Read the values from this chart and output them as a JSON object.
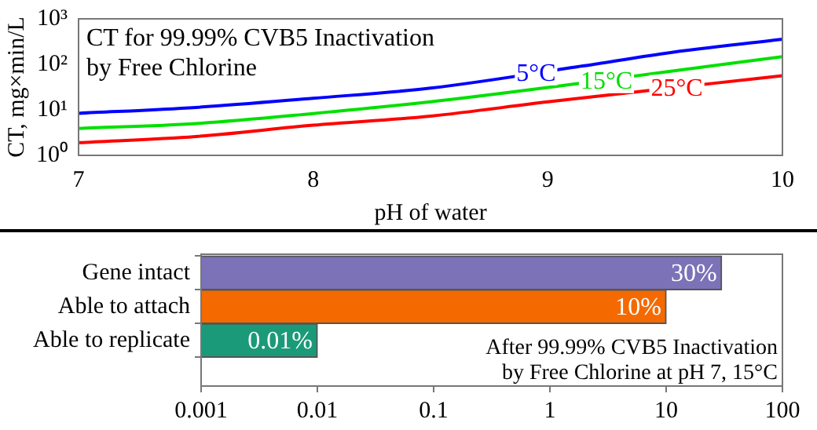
{
  "chart_data": [
    {
      "type": "line",
      "title": "CT for 99.99% CVB5 Inactivation\nby Free Chlorine",
      "xlabel": "pH of water",
      "ylabel": "CT, mg×min/L",
      "log": "y",
      "grid": false,
      "legend": false,
      "marker": "none",
      "line_style": "solid",
      "xlim": [
        7,
        10
      ],
      "xticks": [
        7,
        8,
        9,
        10
      ],
      "ylim": [
        1,
        1000
      ],
      "yticks": [
        {
          "value": 1,
          "label": "10⁰"
        },
        {
          "value": 10,
          "label": "10¹"
        },
        {
          "value": 100,
          "label": "10²"
        },
        {
          "value": 1000,
          "label": "10³"
        }
      ],
      "series": [
        {
          "color": "#0000ff",
          "x": [
            7,
            7.5,
            8,
            8.5,
            9.15,
            9.5,
            10
          ],
          "values": [
            8.4,
            11.3,
            18,
            30,
            92,
            175,
            355
          ]
        },
        {
          "color": "#00e000",
          "x": [
            7,
            7.5,
            8,
            8.5,
            9,
            9.5,
            10
          ],
          "values": [
            3.9,
            5,
            8.3,
            15,
            31,
            68,
            147
          ]
        },
        {
          "color": "#ff0000",
          "x": [
            7,
            7.5,
            8,
            8.5,
            9,
            9.7,
            10
          ],
          "values": [
            1.9,
            2.6,
            4.6,
            7.3,
            15,
            38,
            56
          ]
        }
      ],
      "annotations": [
        {
          "text": "5°C",
          "x": 8.95,
          "y": 65
        },
        {
          "text": "15°C",
          "x": 9.25,
          "y": 44
        },
        {
          "text": "25°C",
          "x": 9.55,
          "y": 31
        }
      ]
    },
    {
      "type": "bar",
      "orientation": "horizontal",
      "log": "x",
      "grid": false,
      "legend": false,
      "categories": [
        "Gene intact",
        "Able to attach",
        "Able to replicate"
      ],
      "values": [
        30,
        10,
        0.01
      ],
      "colors": [
        "#7b72b8",
        "#f46a00",
        "#1a9a78"
      ],
      "value_labels": [
        "30%",
        "10%",
        "0.01%"
      ],
      "xlim": [
        0.001,
        100
      ],
      "xticks": [
        {
          "value": 0.001,
          "label": "0.001"
        },
        {
          "value": 0.01,
          "label": "0.01"
        },
        {
          "value": 0.1,
          "label": "0.1"
        },
        1,
        10,
        100
      ],
      "annotations": [
        "After 99.99% CVB5 Inactivation\nby Free Chlorine at pH 7, 15°C"
      ]
    }
  ]
}
